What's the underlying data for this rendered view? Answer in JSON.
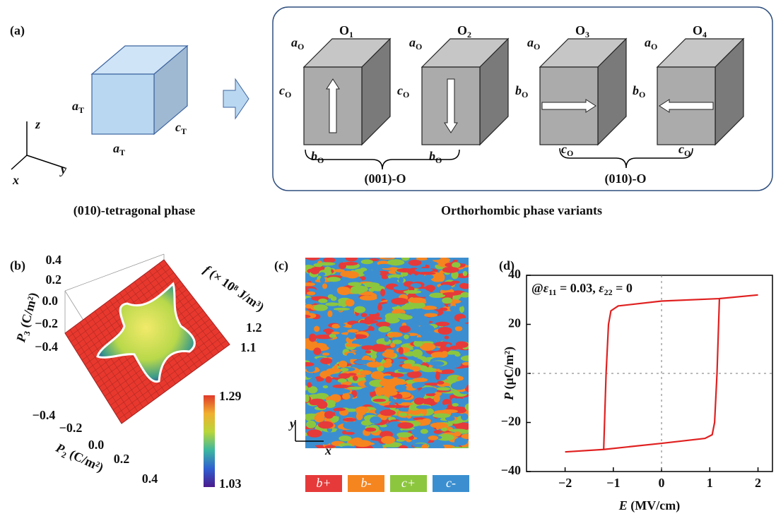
{
  "panel_a": {
    "label": "(a)",
    "tetragonal": {
      "edges": [
        {
          "base": "a",
          "sub": "T"
        },
        {
          "base": "a",
          "sub": "T"
        },
        {
          "base": "c",
          "sub": "T"
        }
      ],
      "axes": [
        "z",
        "y",
        "x"
      ],
      "caption": "(010)-tetragonal phase"
    },
    "variants": [
      {
        "name": {
          "base": "O",
          "sub": "1"
        },
        "top": {
          "base": "a",
          "sub": "O"
        },
        "side": {
          "base": "c",
          "sub": "O"
        },
        "bottom": {
          "base": "b",
          "sub": "O"
        }
      },
      {
        "name": {
          "base": "O",
          "sub": "2"
        },
        "top": {
          "base": "a",
          "sub": "O"
        },
        "side": {
          "base": "c",
          "sub": "O"
        },
        "bottom": {
          "base": "b",
          "sub": "O"
        }
      },
      {
        "name": {
          "base": "O",
          "sub": "3"
        },
        "top": {
          "base": "a",
          "sub": "O"
        },
        "side": {
          "base": "b",
          "sub": "O"
        },
        "bottom": {
          "base": "c",
          "sub": "O"
        }
      },
      {
        "name": {
          "base": "O",
          "sub": "4"
        },
        "top": {
          "base": "a",
          "sub": "O"
        },
        "side": {
          "base": "b",
          "sub": "O"
        },
        "bottom": {
          "base": "c",
          "sub": "O"
        }
      }
    ],
    "groups": [
      "(001)-O",
      "(010)-O"
    ],
    "caption": "Orthorhombic phase variants"
  },
  "panel_b": {
    "label": "(b)",
    "p3_label": {
      "base": "P",
      "sub": "3",
      "unit": " (C/m²)"
    },
    "p3_ticks": [
      "0.4",
      "0.2",
      "0.0",
      "−0.2",
      "−0.4"
    ],
    "p2_label": {
      "base": "P",
      "sub": "2",
      "unit": " (C/m²)"
    },
    "p2_ticks": [
      "−0.4",
      "−0.2",
      "0.0",
      "0.2",
      "0.4"
    ],
    "f_label": {
      "base": "f",
      "unit": " (× 10⁸ J/m³)"
    },
    "f_ticks": [
      "1.2",
      "1.1"
    ],
    "colorbar_ticks": [
      "1.29",
      "1.03"
    ]
  },
  "panel_c": {
    "label": "(c)",
    "axes": [
      "y",
      "x"
    ],
    "legend": [
      {
        "name": "b+",
        "color": "#e63a3a"
      },
      {
        "name": "b-",
        "color": "#f5851f"
      },
      {
        "name": "c+",
        "color": "#8cc63e"
      },
      {
        "name": "c-",
        "color": "#3b8fd0"
      }
    ]
  },
  "chart_data": {
    "type": "line",
    "label": "(d)",
    "annotation": [
      "@",
      "ε",
      "11",
      " = 0.03, ",
      "ε",
      "22",
      " = 0"
    ],
    "xlabel": {
      "var": "E",
      "unit": " (MV/cm)"
    },
    "ylabel": {
      "var": "P",
      "unit": " (μC/m²)"
    },
    "xlim": [
      -2.8,
      2.3
    ],
    "ylim": [
      -40,
      40
    ],
    "xticks": [
      {
        "value": -2,
        "label": "−2"
      },
      {
        "value": -1,
        "label": "−1"
      },
      0,
      1,
      2
    ],
    "yticks": [
      {
        "value": -40,
        "label": "−40"
      },
      {
        "value": -20,
        "label": "−20"
      },
      0,
      20,
      40
    ],
    "zero_lines": true,
    "series": [
      {
        "color": "#e02020",
        "x": [
          2,
          1.2,
          0,
          -0.9,
          -1.05,
          -1.1,
          -1.15,
          -1.2,
          -2,
          -1.2,
          0,
          0.9,
          1.05,
          1.1,
          1.15,
          1.2,
          2
        ],
        "values": [
          32,
          30.5,
          29.5,
          27.5,
          25.5,
          20,
          0,
          -31,
          -32,
          -31,
          -28.5,
          -26.5,
          -25,
          -20,
          0,
          30.5,
          32
        ]
      }
    ]
  }
}
